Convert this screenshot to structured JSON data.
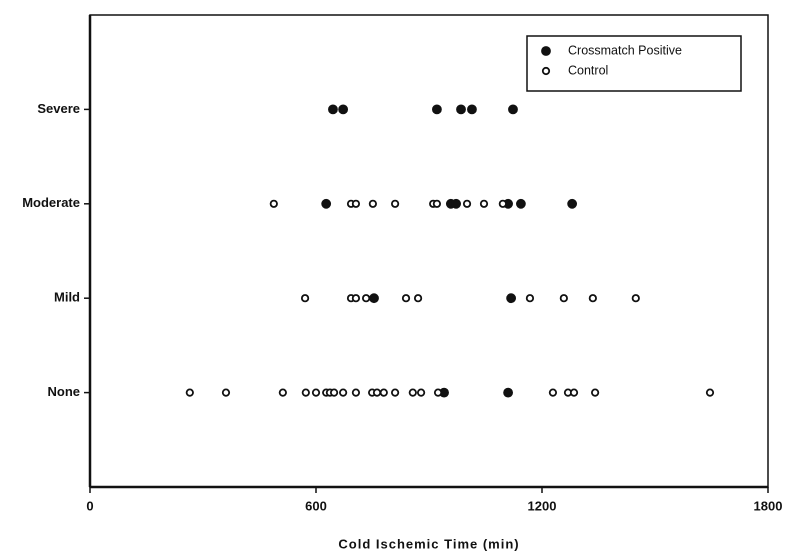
{
  "chart_data": {
    "type": "scatter",
    "xlabel": "Cold Ischemic Time (min)",
    "categories": [
      "None",
      "Mild",
      "Moderate",
      "Severe"
    ],
    "xlim": [
      0,
      1800
    ],
    "xticks": [
      0,
      600,
      1200,
      1800
    ],
    "legend": "upper right",
    "series": [
      {
        "name": "Crossmatch Positive",
        "color": "#111111",
        "marker": "filled",
        "x": [
          645,
          672,
          921,
          985,
          1014,
          1123,
          627,
          958,
          972,
          1110,
          1144,
          1280,
          754,
          1118,
          940,
          1110
        ],
        "y": [
          "Severe",
          "Severe",
          "Severe",
          "Severe",
          "Severe",
          "Severe",
          "Moderate",
          "Moderate",
          "Moderate",
          "Moderate",
          "Moderate",
          "Moderate",
          "Mild",
          "Mild",
          "None",
          "None"
        ]
      },
      {
        "name": "Control",
        "color": "#111111",
        "marker": "open",
        "x": [
          488,
          693,
          706,
          751,
          810,
          911,
          921,
          1001,
          1046,
          1096,
          571,
          693,
          706,
          733,
          839,
          871,
          1168,
          1258,
          1335,
          1449,
          265,
          361,
          512,
          573,
          600,
          627,
          637,
          648,
          672,
          706,
          749,
          762,
          780,
          810,
          857,
          879,
          924,
          1229,
          1269,
          1285,
          1341,
          1646
        ],
        "y": [
          "Moderate",
          "Moderate",
          "Moderate",
          "Moderate",
          "Moderate",
          "Moderate",
          "Moderate",
          "Moderate",
          "Moderate",
          "Moderate",
          "Mild",
          "Mild",
          "Mild",
          "Mild",
          "Mild",
          "Mild",
          "Mild",
          "Mild",
          "Mild",
          "Mild",
          "None",
          "None",
          "None",
          "None",
          "None",
          "None",
          "None",
          "None",
          "None",
          "None",
          "None",
          "None",
          "None",
          "None",
          "None",
          "None",
          "None",
          "None",
          "None",
          "None",
          "None",
          "None"
        ]
      }
    ]
  }
}
